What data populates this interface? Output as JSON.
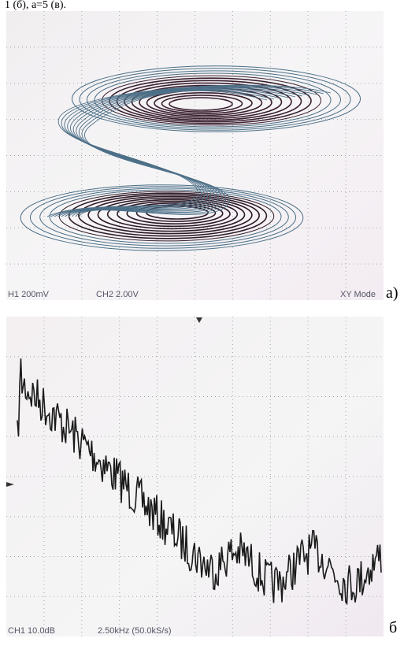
{
  "header": {
    "text": "1 (б), a=5 (в)."
  },
  "panel_a": {
    "ch1": "H1  200mV",
    "ch2": "CH2  2.00V",
    "mode": "XY Mode",
    "label": "а)"
  },
  "panel_b": {
    "ch1": "CH1  10.0dB",
    "freq": "2.50kHz (50.0kS/s)",
    "label": "б"
  }
}
